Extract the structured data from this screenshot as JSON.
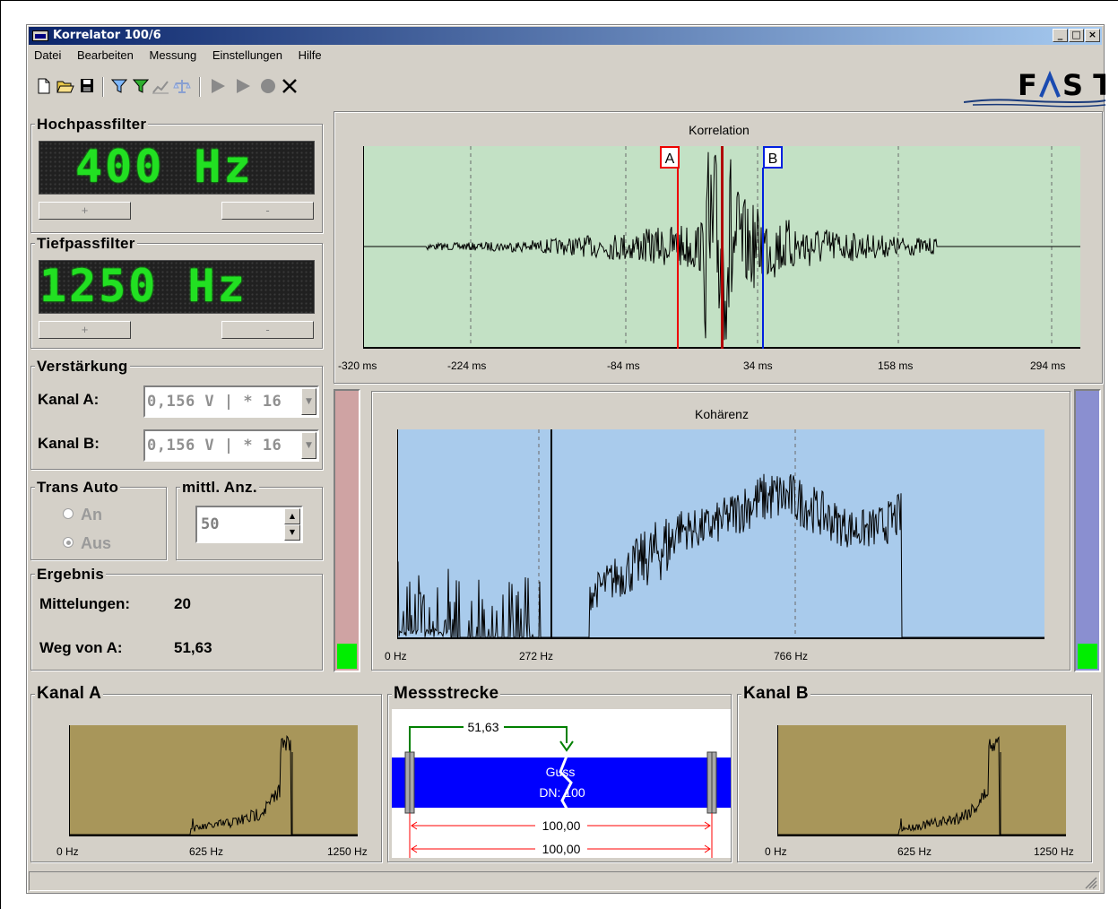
{
  "window": {
    "title": "Korrelator 100/6"
  },
  "menu": [
    "Datei",
    "Bearbeiten",
    "Messung",
    "Einstellungen",
    "Hilfe"
  ],
  "logo": {
    "text_left": "F",
    "text_right": "S T"
  },
  "highpass": {
    "title": "Hochpassfilter",
    "display": "400 Hz",
    "plus_label": "+",
    "minus_label": "-"
  },
  "lowpass": {
    "title": "Tiefpassfilter",
    "display": "1250 Hz",
    "plus_label": "+",
    "minus_label": "-"
  },
  "gain": {
    "title": "Verstärkung",
    "kanal_a_label": "Kanal A:",
    "kanal_a_value": "0,156 V  | * 16",
    "kanal_b_label": "Kanal B:",
    "kanal_b_value": "0,156 V  | * 16"
  },
  "trans_auto": {
    "title": "Trans Auto",
    "on_label": "An",
    "off_label": "Aus",
    "selected": "Aus"
  },
  "avg_count": {
    "title": "mittl. Anz.",
    "value": "50"
  },
  "result": {
    "title": "Ergebnis",
    "mittelungen_label": "Mittelungen:",
    "mittelungen_value": "20",
    "weg_label": "Weg von A:",
    "weg_value": "51,63"
  },
  "correlation": {
    "title": "Korrelation",
    "bg_color": "#c3e1c5",
    "xticks": [
      "-320 ms",
      "-224 ms",
      "-84 ms",
      "34 ms",
      "158 ms",
      "294 ms"
    ],
    "marker_a": {
      "label": "A",
      "color": "#ee0000"
    },
    "marker_b": {
      "label": "B",
      "color": "#0020e0"
    }
  },
  "coherence": {
    "title": "Kohärenz",
    "bg_color": "#a9cbec",
    "xticks": [
      "0 Hz",
      "272 Hz",
      "766 Hz"
    ]
  },
  "meters": {
    "left": {
      "color": "#cfa3a3",
      "level": 0.1
    },
    "right": {
      "color": "#8a8fd0",
      "level": 0.1
    }
  },
  "spectrum_a": {
    "title": "Kanal A",
    "bg_color": "#a8965a",
    "xticks": [
      "0 Hz",
      "625 Hz",
      "1250 Hz"
    ]
  },
  "spectrum_b": {
    "title": "Kanal B",
    "bg_color": "#a8965a",
    "xticks": [
      "0 Hz",
      "625 Hz",
      "1250 Hz"
    ]
  },
  "measurement": {
    "title": "Messstrecke",
    "distance_label": "51,63",
    "pipe_material": "Guss",
    "pipe_dn": "DN: 100",
    "length_1": "100,00",
    "length_2": "100,00",
    "pipe_color": "#0000ff"
  }
}
